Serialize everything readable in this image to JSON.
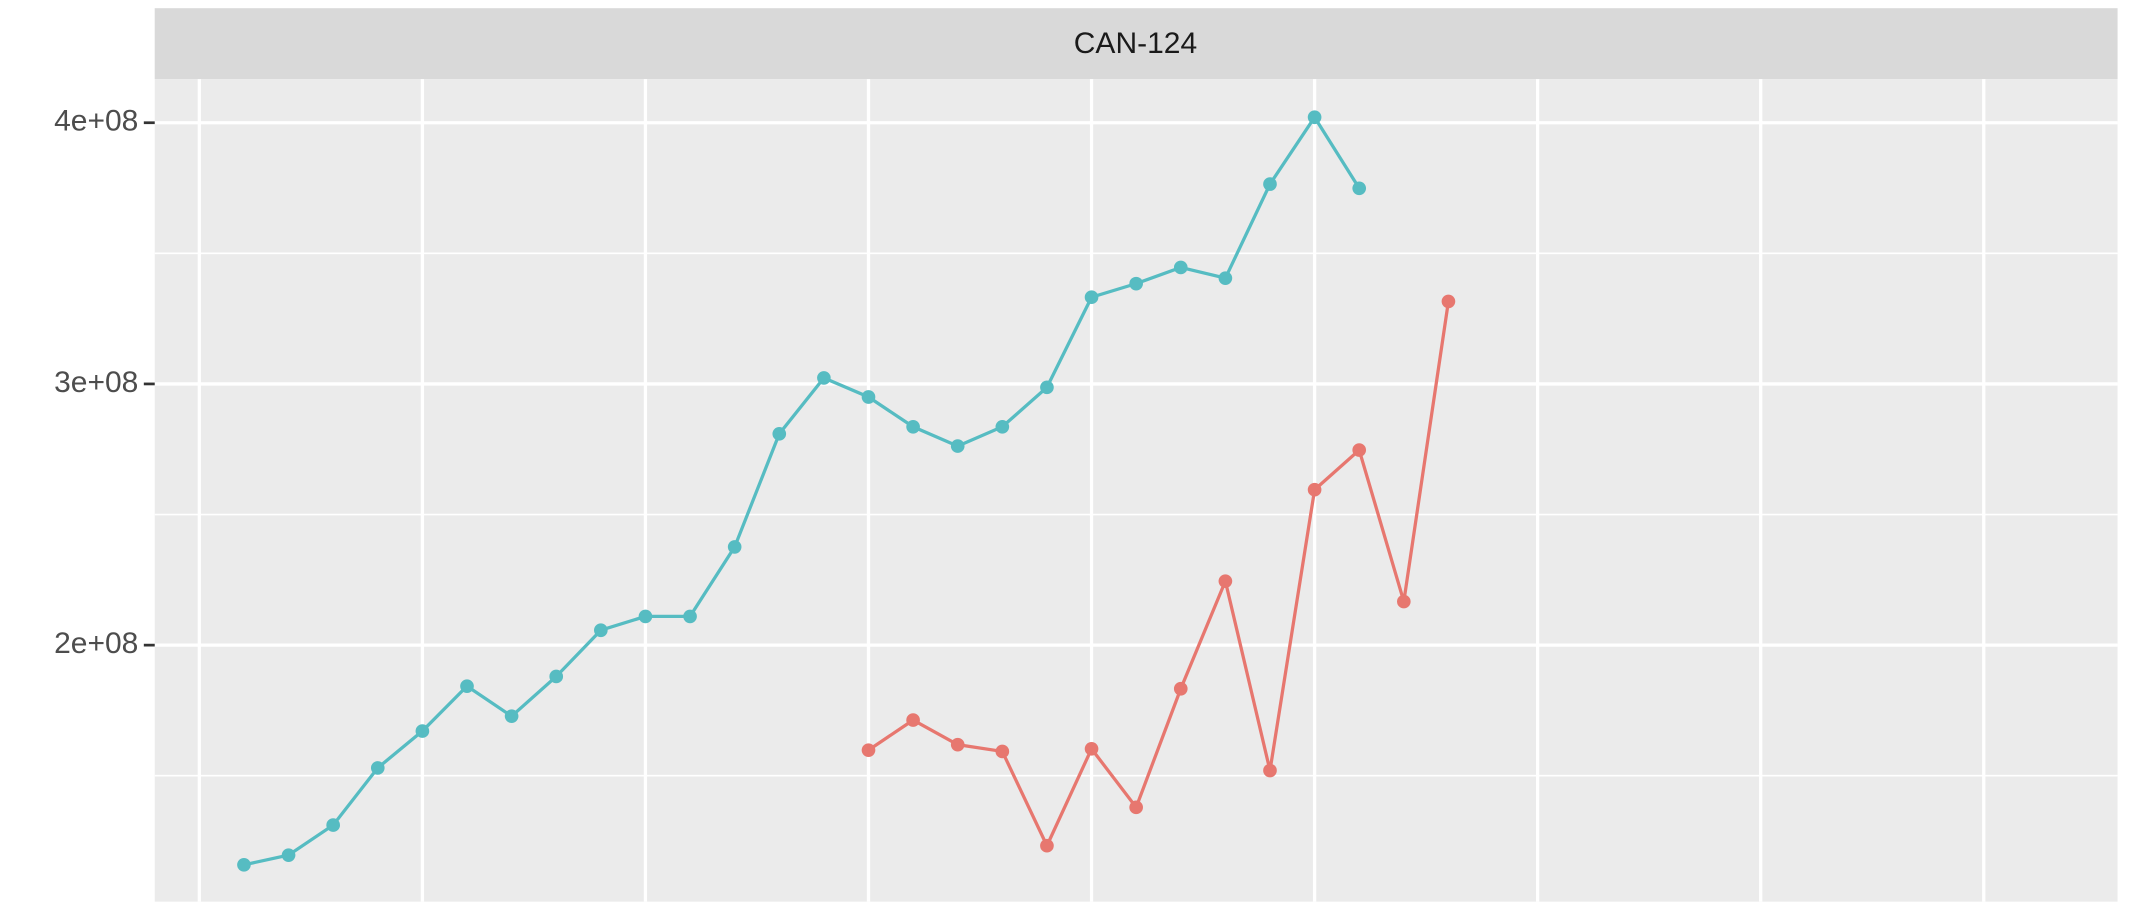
{
  "chart_data": {
    "type": "line",
    "title": "CAN-124",
    "x": [
      1,
      2,
      3,
      4,
      5,
      6,
      7,
      8,
      9,
      10,
      11,
      12,
      13,
      14,
      15,
      16,
      17,
      18,
      19,
      20,
      21,
      22,
      23,
      24,
      25,
      26,
      27,
      28
    ],
    "xlim": [
      -1,
      43
    ],
    "xticks": [
      0,
      5,
      10,
      15,
      20,
      25,
      30,
      35,
      40
    ],
    "ylim": [
      101800000,
      416700000
    ],
    "yticks": [
      {
        "value": 200000000,
        "label": "2e+08"
      },
      {
        "value": 300000000,
        "label": "3e+08"
      },
      {
        "value": 400000000,
        "label": "4e+08"
      }
    ],
    "yminorticks": [
      150000000,
      250000000,
      350000000
    ],
    "grid": true,
    "series": [
      {
        "color": "#56bcc2",
        "values": [
          115900000,
          119600000,
          131100000,
          153000000,
          167100000,
          184300000,
          172800000,
          188000000,
          205700000,
          211000000,
          211000000,
          237600000,
          280900000,
          302300000,
          295000000,
          283600000,
          276200000,
          283600000,
          298700000,
          333200000,
          338400000,
          344600000,
          340500000,
          376500000,
          402100000,
          374900000,
          null,
          null
        ]
      },
      {
        "color": "#e7776f",
        "values": [
          null,
          null,
          null,
          null,
          null,
          null,
          null,
          null,
          null,
          null,
          null,
          null,
          null,
          null,
          159800000,
          171300000,
          161900000,
          159300000,
          123200000,
          160300000,
          137900000,
          183300000,
          224500000,
          152000000,
          259500000,
          274700000,
          216700000,
          331600000
        ]
      }
    ]
  }
}
